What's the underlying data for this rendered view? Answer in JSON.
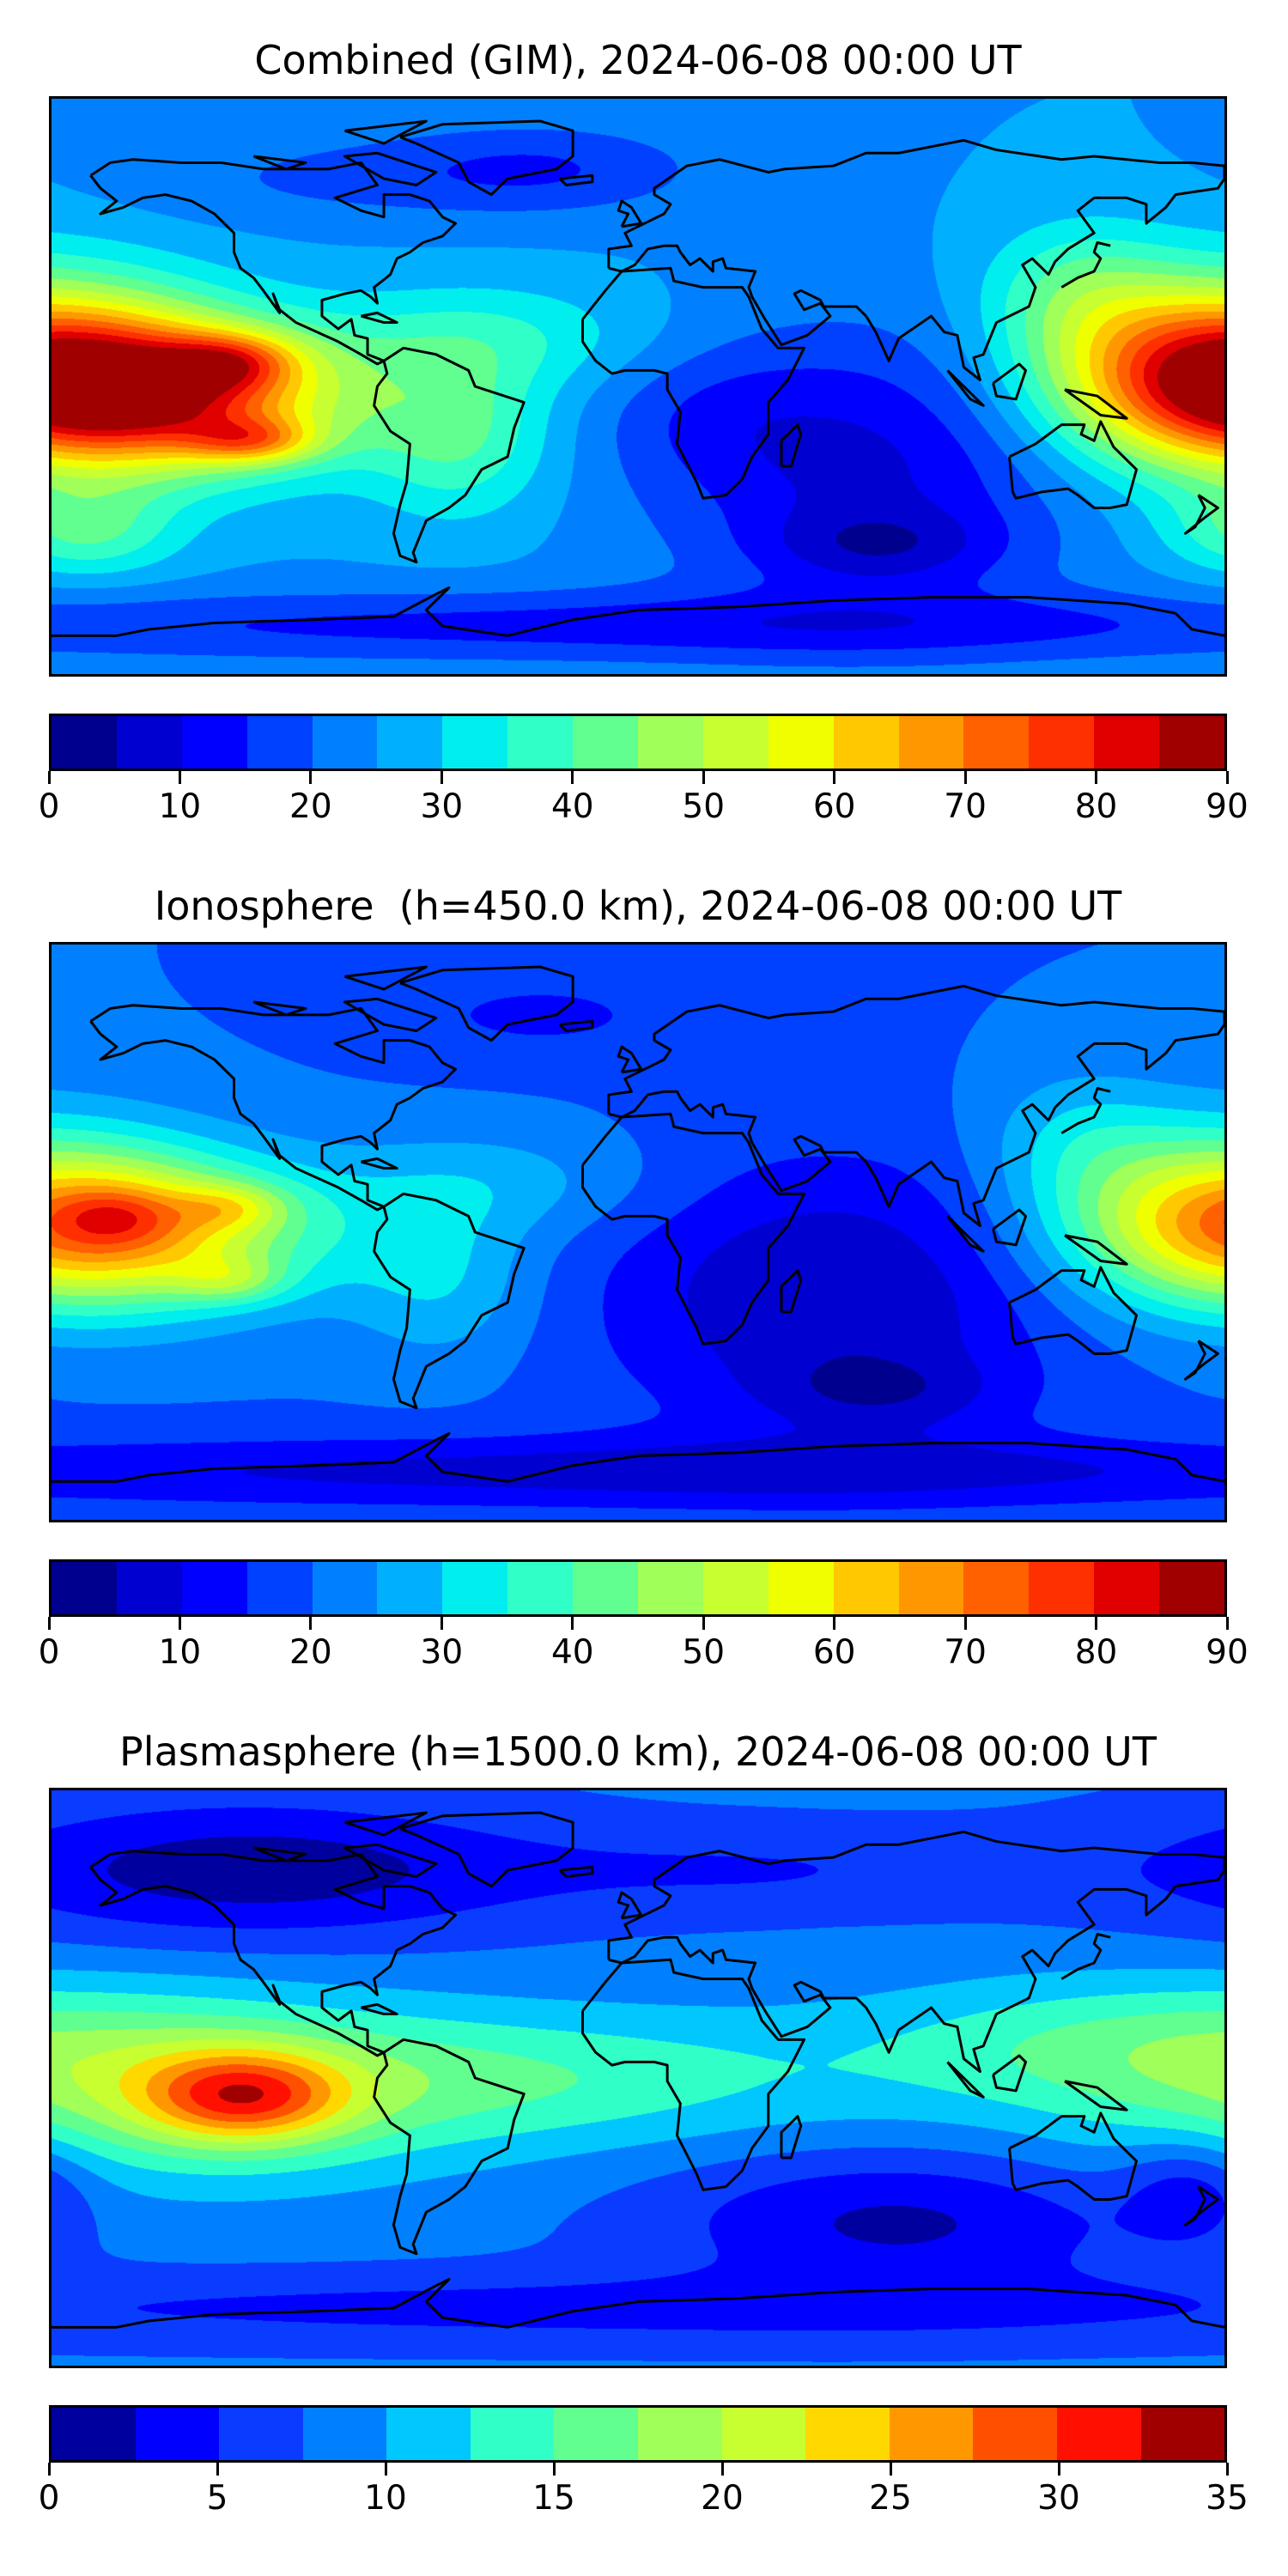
{
  "chart_data": [
    {
      "type": "heatmap",
      "title": "Combined (GIM), 2024-06-08 00:00 UT",
      "xlabel": "",
      "ylabel": "",
      "projection": "equirectangular world map with coastlines",
      "colorbar": {
        "min": 0,
        "max": 90,
        "step": 5,
        "ticks": [
          "0",
          "10",
          "20",
          "30",
          "40",
          "50",
          "60",
          "70",
          "80",
          "90"
        ],
        "colors": [
          "#00008f",
          "#0000d0",
          "#0000ff",
          "#0040ff",
          "#0080ff",
          "#00b0ff",
          "#00eeee",
          "#30ffc8",
          "#60ff90",
          "#a0ff58",
          "#c8ff30",
          "#f0ff00",
          "#ffc800",
          "#ff9800",
          "#ff6000",
          "#ff3000",
          "#e00000",
          "#a00000"
        ]
      },
      "features": {
        "max_region": "Eastern Pacific near 125W (values >85)",
        "min_region": "South Indian Ocean (values <5)"
      }
    },
    {
      "type": "heatmap",
      "title": "Ionosphere  (h=450.0 km), 2024-06-08 00:00 UT",
      "xlabel": "",
      "ylabel": "",
      "projection": "equirectangular world map with coastlines",
      "colorbar": {
        "min": 0,
        "max": 90,
        "step": 5,
        "ticks": [
          "0",
          "10",
          "20",
          "30",
          "40",
          "50",
          "60",
          "70",
          "80",
          "90"
        ],
        "colors": [
          "#00008f",
          "#0000d0",
          "#0000ff",
          "#0040ff",
          "#0080ff",
          "#00b0ff",
          "#00eeee",
          "#30ffc8",
          "#60ff90",
          "#a0ff58",
          "#c8ff30",
          "#f0ff00",
          "#ffc800",
          "#ff9800",
          "#ff6000",
          "#ff3000",
          "#e00000",
          "#a00000"
        ]
      },
      "features": {
        "max_region": "Eastern Pacific (values 60-65)",
        "min_region": "Indian Ocean (values <5)"
      }
    },
    {
      "type": "heatmap",
      "title": "Plasmasphere (h=1500.0 km), 2024-06-08 00:00 UT",
      "xlabel": "",
      "ylabel": "",
      "projection": "equirectangular world map with coastlines",
      "colorbar": {
        "min": 0,
        "max": 35,
        "step": 2.5,
        "ticks": [
          "0",
          "5",
          "10",
          "15",
          "20",
          "25",
          "30",
          "35"
        ],
        "colors": [
          "#00009f",
          "#0000ff",
          "#0a3cff",
          "#0080ff",
          "#00c8ff",
          "#30ffc8",
          "#60ff90",
          "#a0ff58",
          "#c8ff30",
          "#ffd800",
          "#ff9800",
          "#ff5000",
          "#ff1000",
          "#a00000"
        ]
      },
      "features": {
        "max_region": "Eastern Pacific near 120W (values 27.5-30)",
        "min_region": "High northern latitudes and South Indian Ocean (values <2.5)"
      }
    }
  ]
}
